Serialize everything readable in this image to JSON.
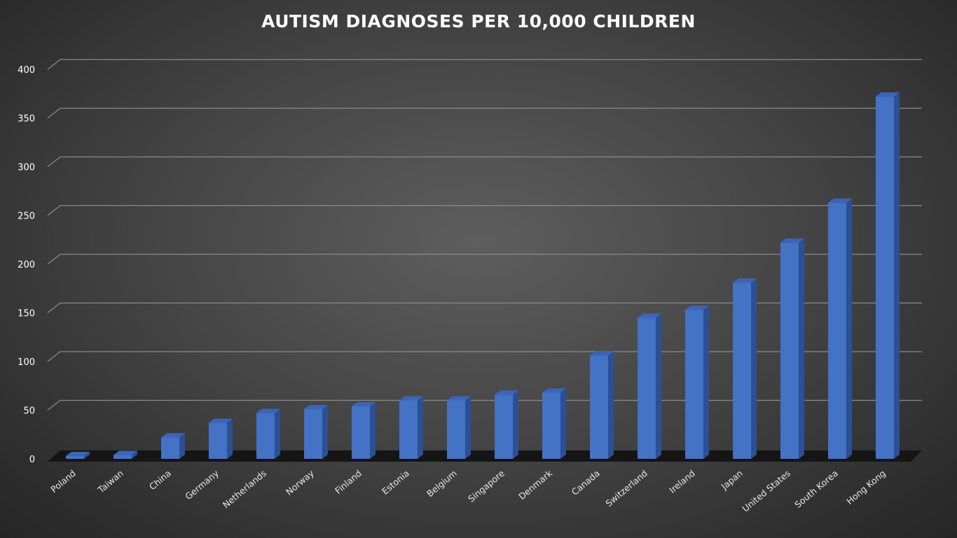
{
  "chart_data": {
    "type": "bar",
    "title": "AUTISM DIAGNOSES PER 10,000 CHILDREN",
    "xlabel": "",
    "ylabel": "",
    "ylim": [
      0,
      400
    ],
    "yticks": [
      0,
      50,
      100,
      150,
      200,
      250,
      300,
      350,
      400
    ],
    "grid": true,
    "legend": "none",
    "bar_color": "#4472C4",
    "categories": [
      "Poland",
      "Taiwan",
      "China",
      "Germany",
      "Netherlands",
      "Norway",
      "Finland",
      "Estonia",
      "Belgium",
      "Singapore",
      "Denmark",
      "Canada",
      "Switzerland",
      "Ireland",
      "Japan",
      "United States",
      "South Korea",
      "Hong Kong"
    ],
    "values": [
      3,
      4,
      22,
      37,
      47,
      51,
      54,
      60,
      60,
      66,
      68,
      106,
      145,
      153,
      181,
      222,
      263,
      372
    ]
  }
}
